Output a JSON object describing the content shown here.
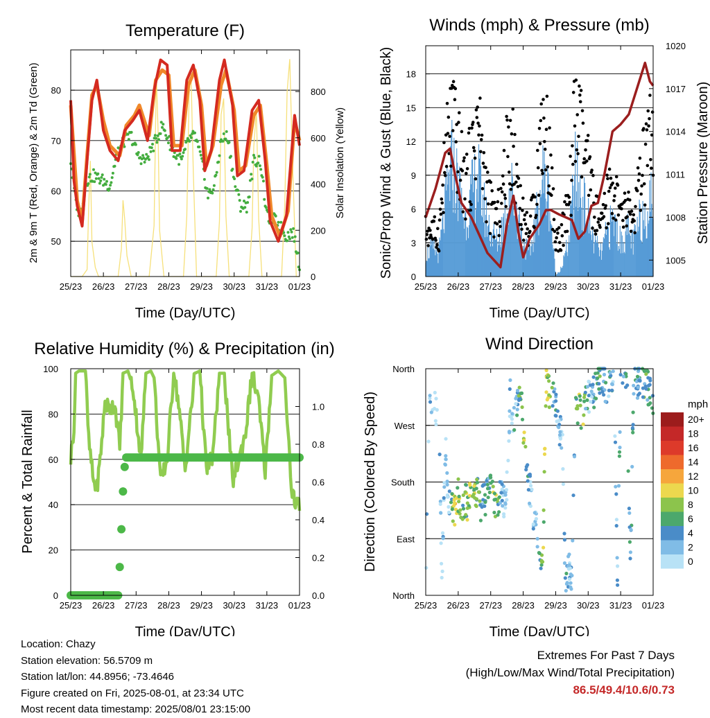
{
  "colors": {
    "temp_2m": "#d42a20",
    "temp_9m": "#f0882a",
    "dewpoint": "#44ad3f",
    "solar": "#f6e07a",
    "sonic_wind": "#569bd6",
    "gust": "#000000",
    "pressure": "#9b1e1e",
    "humidity": "#90cc50",
    "rain": "#4cb848",
    "extremes": "#c42828"
  },
  "chart_data": [
    {
      "type": "line",
      "title": "Temperature (F)",
      "xlabel": "Time (Day/UTC)",
      "ylabel": "2m & 9m T (Red, Orange) & 2m Td (Green)",
      "y2label": "Solar Insolation (Yellow)",
      "x_ticks": [
        "25/23",
        "26/23",
        "27/23",
        "28/23",
        "29/23",
        "30/23",
        "31/23",
        "01/23"
      ],
      "ylim": [
        43,
        88
      ],
      "yticks": [
        50,
        60,
        70,
        80
      ],
      "y2lim": [
        0,
        980
      ],
      "y2ticks": [
        0,
        200,
        400,
        600,
        800
      ],
      "grid": true,
      "series": [
        {
          "key": "t2m",
          "color": "temp_2m",
          "x": [
            0,
            0.1,
            0.2,
            0.35,
            0.5,
            0.65,
            0.8,
            1,
            1.2,
            1.45,
            1.65,
            1.9,
            2.1,
            2.35,
            2.55,
            2.75,
            2.95,
            3.1,
            3.35,
            3.55,
            3.75,
            3.95,
            4.1,
            4.3,
            4.55,
            4.7,
            4.95,
            5.1,
            5.3,
            5.55,
            5.75,
            5.95,
            6.1,
            6.35,
            6.6,
            6.85,
            7
          ],
          "y": [
            78,
            62,
            57,
            53,
            66,
            78,
            82,
            72,
            68,
            66,
            72,
            74,
            76,
            70,
            80,
            86,
            85,
            68,
            68,
            82,
            85,
            78,
            64,
            68,
            82,
            86,
            77,
            63,
            64,
            76,
            78,
            66,
            54,
            50,
            55,
            75,
            69
          ]
        },
        {
          "key": "t9m",
          "color": "temp_9m",
          "x": [
            0,
            0.2,
            0.35,
            0.5,
            0.65,
            0.8,
            1,
            1.2,
            1.5,
            1.7,
            1.95,
            2.1,
            2.4,
            2.6,
            2.8,
            3,
            3.15,
            3.4,
            3.6,
            3.8,
            4,
            4.15,
            4.35,
            4.6,
            4.75,
            5,
            5.15,
            5.35,
            5.6,
            5.8,
            6,
            6.15,
            6.4,
            6.65,
            6.85,
            7
          ],
          "y": [
            77,
            58,
            54,
            67,
            79,
            81,
            74,
            69,
            67,
            73,
            75,
            77,
            71,
            82,
            84,
            83,
            69,
            69,
            81,
            84,
            77,
            65,
            69,
            81,
            84,
            76,
            64,
            65,
            75,
            77,
            65,
            55,
            51,
            56,
            74,
            70
          ]
        },
        {
          "key": "td",
          "color": "dewpoint",
          "x": [
            0,
            0.15,
            0.3,
            0.45,
            0.7,
            1,
            1.2,
            1.4,
            1.65,
            1.85,
            2.05,
            2.3,
            2.6,
            2.8,
            3,
            3.2,
            3.4,
            3.6,
            3.8,
            4,
            4.2,
            4.4,
            4.6,
            4.8,
            5,
            5.2,
            5.4,
            5.6,
            5.8,
            6,
            6.3,
            6.6,
            6.8,
            7
          ],
          "y": [
            66,
            58,
            55,
            62,
            63,
            62,
            61,
            67,
            70,
            71,
            67,
            66,
            70,
            73,
            70,
            67,
            66,
            70,
            71,
            66,
            59,
            61,
            70,
            71,
            62,
            57,
            57,
            66,
            66,
            55,
            54,
            51,
            52,
            45
          ]
        },
        {
          "key": "solar",
          "color": "solar",
          "x": [
            0,
            0.35,
            0.5,
            0.55,
            0.6,
            0.65,
            0.75,
            0.85,
            1.45,
            1.55,
            1.6,
            1.65,
            1.72,
            1.85,
            2.4,
            2.55,
            2.62,
            2.67,
            2.72,
            2.85,
            3.45,
            3.55,
            3.62,
            3.68,
            3.75,
            3.85,
            4.45,
            4.55,
            4.6,
            4.68,
            4.75,
            4.85,
            5.45,
            5.55,
            5.6,
            5.68,
            5.75,
            5.85,
            6.45,
            6.55,
            6.62,
            6.7,
            6.78,
            6.9,
            7
          ],
          "y": [
            0,
            0,
            30,
            300,
            500,
            150,
            40,
            0,
            0,
            120,
            330,
            250,
            90,
            0,
            0,
            220,
            870,
            640,
            200,
            0,
            0,
            260,
            780,
            880,
            450,
            0,
            0,
            240,
            700,
            770,
            260,
            0,
            0,
            210,
            560,
            720,
            250,
            0,
            0,
            320,
            800,
            940,
            520,
            0,
            0
          ]
        }
      ]
    },
    {
      "type": "scatter",
      "title": "Winds (mph) & Pressure (mb)",
      "xlabel": "Time (Day/UTC)",
      "ylabel": "Sonic/Prop Wind & Gust (Blue, Black)",
      "y2label": "Station Pressure (Maroon)",
      "x_ticks": [
        "25/23",
        "26/23",
        "27/23",
        "28/23",
        "29/23",
        "30/23",
        "31/23",
        "01/23"
      ],
      "ylim": [
        0,
        20.5
      ],
      "yticks": [
        0,
        3,
        6,
        9,
        12,
        15,
        18
      ],
      "y2lim": [
        1003.85,
        1020
      ],
      "y2ticks": [
        1005,
        1008,
        1011,
        1014,
        1017,
        1020
      ],
      "grid": true,
      "series": [
        {
          "key": "wind",
          "color": "sonic_wind",
          "x": [
            0,
            0.2,
            0.4,
            0.6,
            0.8,
            1,
            1.2,
            1.4,
            1.6,
            1.8,
            2,
            2.2,
            2.4,
            2.6,
            2.8,
            3,
            3.2,
            3.4,
            3.6,
            3.8,
            4,
            4.2,
            4.4,
            4.6,
            4.8,
            5,
            5.2,
            5.4,
            5.6,
            5.8,
            6,
            6.2,
            6.4,
            6.6,
            6.8,
            7
          ],
          "y": [
            2,
            2.5,
            2,
            6,
            10,
            8,
            5,
            7,
            9,
            6,
            4,
            3,
            5,
            8,
            6,
            3,
            2,
            5,
            9,
            7,
            0,
            1,
            3,
            9,
            7,
            5,
            3,
            2,
            4,
            5,
            3,
            4,
            3,
            5,
            6,
            7
          ]
        },
        {
          "key": "gust",
          "color": "gust",
          "x": [
            0,
            0.2,
            0.4,
            0.6,
            0.8,
            1,
            1.2,
            1.4,
            1.6,
            1.8,
            2,
            2.2,
            2.4,
            2.6,
            2.8,
            3,
            3.2,
            3.4,
            3.6,
            3.8,
            4,
            4.2,
            4.4,
            4.6,
            4.8,
            5,
            5.2,
            5.4,
            5.6,
            5.8,
            6,
            6.2,
            6.4,
            6.6,
            6.8,
            7
          ],
          "y": [
            4,
            4,
            3.5,
            10,
            14,
            11,
            8,
            10,
            14,
            9,
            6,
            5,
            8,
            13,
            9,
            5,
            4,
            8,
            14,
            11,
            3,
            4,
            6,
            14,
            12,
            9,
            6,
            4,
            7,
            8,
            5,
            6,
            5,
            8,
            11,
            12
          ]
        },
        {
          "key": "pressure",
          "color": "pressure",
          "x": [
            0,
            0.3,
            0.6,
            0.75,
            0.9,
            1.1,
            1.4,
            1.7,
            1.9,
            2.1,
            2.3,
            2.5,
            2.7,
            2.85,
            3,
            3.2,
            3.5,
            3.7,
            3.85,
            4.1,
            4.3,
            4.5,
            4.7,
            4.9,
            5.1,
            5.3,
            5.5,
            5.75,
            6,
            6.25,
            6.5,
            6.75,
            6.9,
            7
          ],
          "y": [
            1008,
            1010,
            1012.5,
            1012.8,
            1011,
            1009,
            1008,
            1006.5,
            1005.5,
            1005,
            1004.5,
            1007.5,
            1009.5,
            1007,
            1005.2,
            1006.5,
            1007.5,
            1008.5,
            1008.5,
            1008.2,
            1008,
            1007.8,
            1006.5,
            1007,
            1008.8,
            1009,
            1011,
            1014,
            1014.5,
            1015.2,
            1017,
            1018.8,
            1017.5,
            1017.2
          ]
        }
      ]
    },
    {
      "type": "line",
      "title": "Relative Humidity (%) & Precipitation (in)",
      "xlabel": "Time (Day/UTC)",
      "ylabel": "Percent & Total Rainfall",
      "x_ticks": [
        "25/23",
        "26/23",
        "27/23",
        "28/23",
        "29/23",
        "30/23",
        "31/23",
        "01/23"
      ],
      "ylim": [
        0,
        100
      ],
      "yticks": [
        0,
        20,
        40,
        60,
        80,
        100
      ],
      "y2lim": [
        0,
        1.2
      ],
      "y2ticks": [
        "0.0",
        "0.2",
        "0.4",
        "0.6",
        "0.8",
        "1.0"
      ],
      "grid": true,
      "series": [
        {
          "key": "rh",
          "color": "humidity",
          "x": [
            0,
            0.1,
            0.15,
            0.25,
            0.45,
            0.55,
            0.7,
            0.8,
            0.9,
            1.05,
            1.2,
            1.35,
            1.5,
            1.6,
            1.75,
            1.9,
            2.15,
            2.3,
            2.45,
            2.55,
            2.75,
            2.95,
            3.15,
            3.3,
            3.5,
            3.6,
            3.8,
            3.95,
            4.15,
            4.35,
            4.55,
            4.7,
            4.95,
            5.15,
            5.35,
            5.55,
            5.75,
            5.95,
            6.15,
            6.35,
            6.55,
            6.75,
            6.85,
            7
          ],
          "y": [
            60,
            75,
            98,
            99,
            99,
            68,
            50,
            47,
            60,
            85,
            82,
            85,
            65,
            98,
            99,
            92,
            60,
            98,
            99,
            96,
            50,
            60,
            98,
            85,
            55,
            70,
            98,
            99,
            55,
            62,
            98,
            98,
            50,
            60,
            72,
            98,
            85,
            55,
            97,
            99,
            96,
            48,
            42,
            40
          ]
        },
        {
          "key": "rain",
          "color": "rain",
          "x": [
            0,
            0.4,
            0.8,
            1.45,
            1.5,
            1.55,
            1.6,
            1.65,
            1.7,
            2,
            3,
            4,
            5,
            6,
            7
          ],
          "y": [
            0,
            0,
            0,
            0,
            0.15,
            0.35,
            0.55,
            0.68,
            0.73,
            0.73,
            0.73,
            0.73,
            0.73,
            0.73,
            0.73
          ]
        }
      ]
    },
    {
      "type": "scatter",
      "title": "Wind Direction",
      "xlabel": "Time (Day/UTC)",
      "ylabel": "Direction (Colored By Speed)",
      "x_ticks": [
        "25/23",
        "26/23",
        "27/23",
        "28/23",
        "29/23",
        "30/23",
        "31/23",
        "01/23"
      ],
      "ylim": [
        0,
        360
      ],
      "yticks": [
        "North",
        "East",
        "South",
        "West",
        "North"
      ],
      "grid": true,
      "legend_title": "mph",
      "legend": [
        "20+",
        "18",
        "16",
        "14",
        "12",
        "10",
        "8",
        "6",
        "4",
        "2",
        "0"
      ],
      "legend_colors": [
        "#9c1c1c",
        "#c42828",
        "#dd3a2a",
        "#ee6a2c",
        "#f6a63c",
        "#ecd84e",
        "#8cc44c",
        "#4ca86c",
        "#4a8cc8",
        "#80bce6",
        "#b8e2f6"
      ],
      "series": [
        {
          "key": "dir",
          "x": [
            0,
            0.1,
            0.2,
            0.3,
            0.4,
            0.5,
            0.6,
            0.7,
            0.8,
            0.9,
            1,
            1.1,
            1.2,
            1.3,
            1.4,
            1.5,
            1.6,
            1.7,
            1.8,
            1.9,
            2,
            2.1,
            2.2,
            2.3,
            2.4,
            2.5,
            2.6,
            2.7,
            2.8,
            2.9,
            3,
            3.1,
            3.2,
            3.3,
            3.4,
            3.5,
            3.6,
            3.7,
            3.8,
            3.9,
            4,
            4.1,
            4.2,
            4.3,
            4.4,
            4.5,
            4.6,
            4.7,
            4.8,
            4.9,
            5,
            5.1,
            5.2,
            5.3,
            5.4,
            5.5,
            5.6,
            5.7,
            5.8,
            5.9,
            6,
            6.1,
            6.2,
            6.3,
            6.4,
            6.5,
            6.6,
            6.7,
            6.8,
            6.9,
            7
          ],
          "y": [
            5,
            310,
            320,
            300,
            280,
            20,
            240,
            150,
            140,
            135,
            160,
            140,
            150,
            145,
            155,
            150,
            165,
            145,
            150,
            160,
            170,
            150,
            140,
            160,
            150,
            180,
            320,
            280,
            300,
            330,
            270,
            210,
            170,
            130,
            120,
            60,
            30,
            340,
            320,
            330,
            300,
            270,
            250,
            20,
            40,
            30,
            300,
            300,
            290,
            310,
            310,
            330,
            320,
            350,
            340,
            345,
            300,
            350,
            330,
            30,
            330,
            340,
            320,
            30,
            340,
            330,
            350,
            340,
            340,
            320,
            300
          ],
          "speeds": [
            2,
            3,
            2,
            1,
            2,
            1,
            1,
            1,
            6,
            9,
            8,
            5,
            7,
            6,
            9,
            8,
            6,
            5,
            4,
            3,
            5,
            8,
            6,
            4,
            1,
            1,
            1,
            2,
            3,
            7,
            8,
            6,
            1,
            1,
            1,
            4,
            8,
            9,
            7,
            5,
            3,
            3,
            1,
            4,
            1,
            1,
            5,
            8,
            9,
            6,
            3,
            2,
            4,
            5,
            5,
            4,
            3,
            4,
            3,
            2,
            4,
            3,
            5,
            4,
            4,
            3,
            5,
            6,
            5,
            4,
            3
          ]
        }
      ]
    }
  ],
  "info": {
    "location": "Location: Chazy",
    "elevation": "Station elevation: 56.5709 m",
    "latlon": "Station lat/lon: 44.8956; -73.4646",
    "created": "Figure created on Fri, 2025-08-01, at 23:34 UTC",
    "recent": "Most recent data timestamp: 2025/08/01 23:15:00"
  },
  "extremes": {
    "title": "Extremes For Past 7 Days",
    "subtitle": "(High/Low/Max Wind/Total Precipitation)",
    "values": "86.5/49.4/10.6/0.73"
  }
}
